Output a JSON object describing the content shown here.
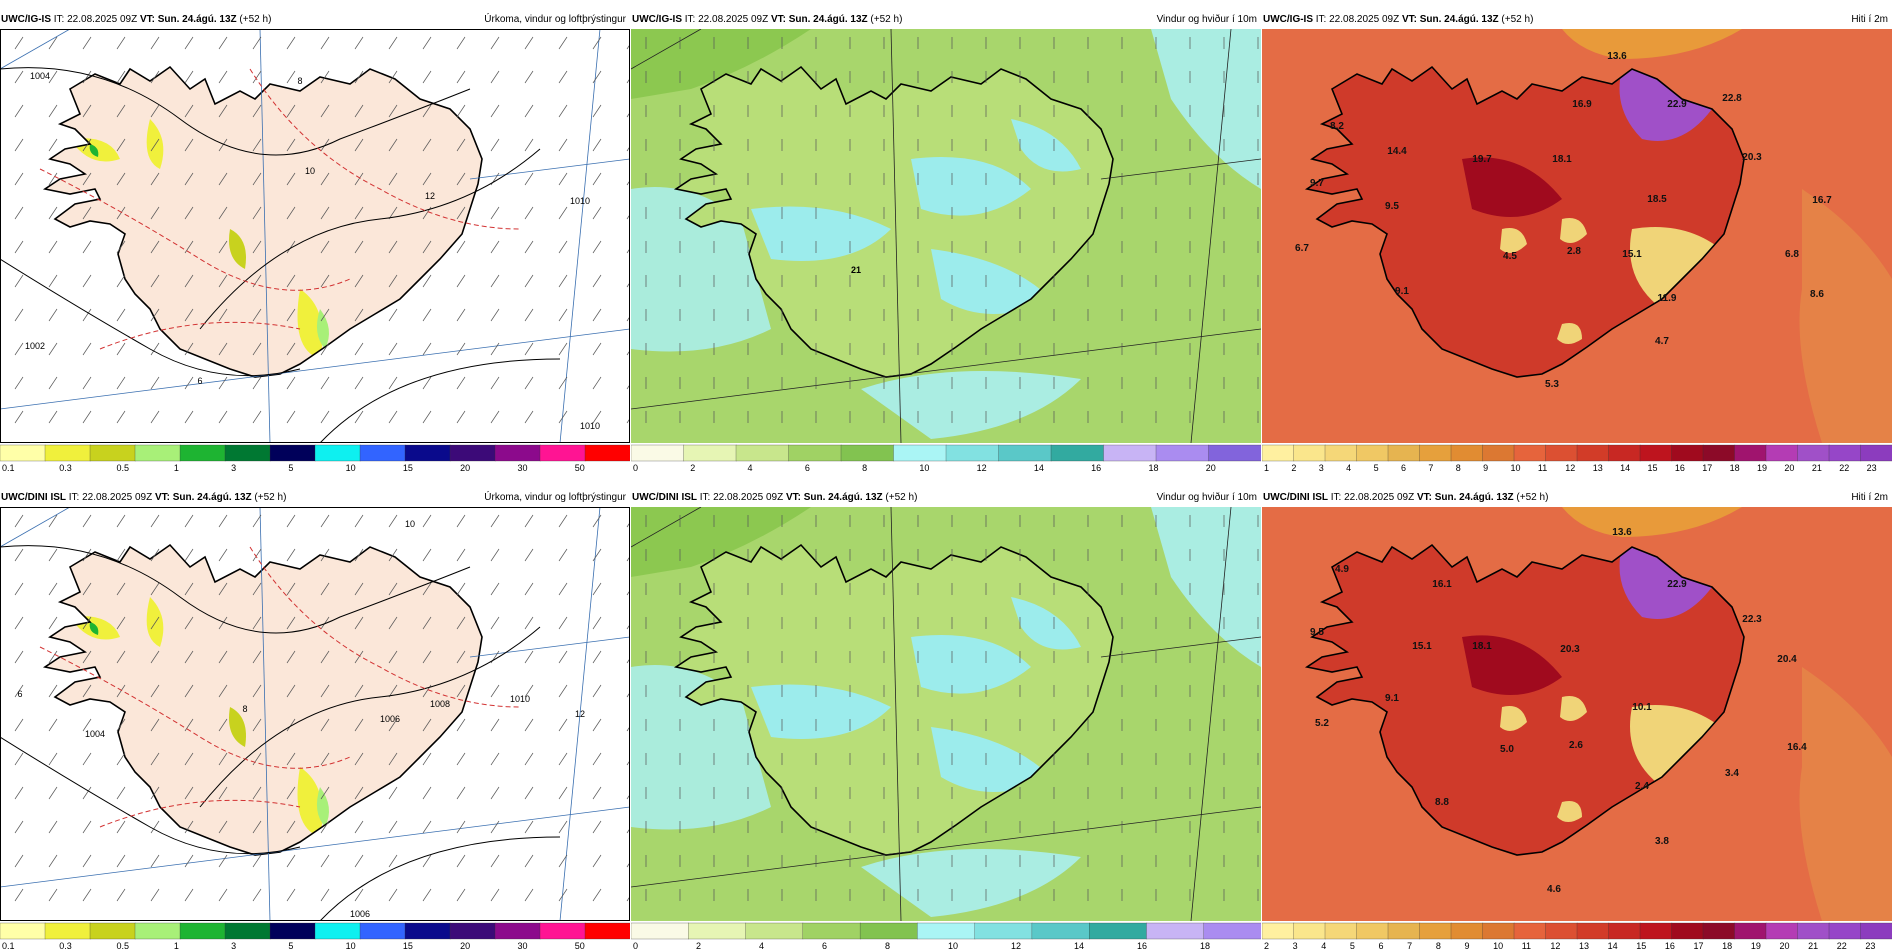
{
  "panels": [
    {
      "id": "p1",
      "model": "UWC/IG-IS",
      "run": " IT: 22.08.2025 09Z ",
      "vt_label": "VT:",
      "vt": "Sun. 24.ágú. 13Z",
      "lead": " (+52 h)",
      "right": "Úrkoma, vindur og loftþrýstingur",
      "kind": "precip",
      "colorbar": {
        "colors": [
          "#ffffa8",
          "#f0f03c",
          "#c8d21e",
          "#a8f078",
          "#1eb432",
          "#007832",
          "#00005a",
          "#0ef0f0",
          "#3264ff",
          "#0a0a8c",
          "#3c0a78",
          "#8c0a8c",
          "#ff1493",
          "#ff0000"
        ],
        "labels": [
          "0.1",
          "0.3",
          "0.5",
          "1",
          "3",
          "5",
          "10",
          "15",
          "20",
          "30",
          "50"
        ]
      },
      "values": [
        {
          "t": "1004"
        },
        {
          "t": "8"
        },
        {
          "t": "10"
        },
        {
          "t": "12"
        },
        {
          "t": "1010"
        },
        {
          "t": "6"
        },
        {
          "t": "1002"
        },
        {
          "t": "1010"
        }
      ]
    },
    {
      "id": "p2",
      "model": "UWC/IG-IS",
      "run": " IT: 22.08.2025 09Z ",
      "vt_label": "VT:",
      "vt": "Sun. 24.ágú. 13Z",
      "lead": " (+52 h)",
      "right": "Vindur og hviður í 10m",
      "kind": "wind",
      "colorbar": {
        "colors": [
          "#fafae6",
          "#e6f5b4",
          "#c8e68c",
          "#a0d264",
          "#82c350",
          "#aaf5f5",
          "#82e1e1",
          "#5ac8c8",
          "#32aaa0",
          "#c8b4f5",
          "#aa8cf0",
          "#8264dc"
        ],
        "labels": [
          "0",
          "2",
          "4",
          "6",
          "8",
          "10",
          "12",
          "14",
          "16",
          "18",
          "20"
        ]
      },
      "values": [
        {
          "t": "21"
        }
      ]
    },
    {
      "id": "p3",
      "model": "UWC/IG-IS",
      "run": " IT: 22.08.2025 09Z ",
      "vt_label": "VT:",
      "vt": "Sun. 24.ágú. 13Z",
      "lead": " (+52 h)",
      "right": "Hiti í 2m",
      "kind": "temp",
      "colorbar": {
        "colors": [
          "#fff0a0",
          "#fae68c",
          "#f5d778",
          "#f0c864",
          "#e6b450",
          "#e6a03c",
          "#e18c32",
          "#dc7832",
          "#e6643c",
          "#dc5032",
          "#d23c28",
          "#c82823",
          "#be141e",
          "#a00a1e",
          "#8c0a28",
          "#a0146e",
          "#b43cb4",
          "#a050c8",
          "#9646c8",
          "#8c3cbe"
        ],
        "labels": [
          "1",
          "2",
          "3",
          "4",
          "5",
          "6",
          "7",
          "8",
          "9",
          "10",
          "11",
          "12",
          "13",
          "14",
          "15",
          "16",
          "17",
          "18",
          "19",
          "20",
          "21",
          "22",
          "23"
        ]
      },
      "values": [
        {
          "t": "13.6"
        },
        {
          "t": "16.9"
        },
        {
          "t": "22.9"
        },
        {
          "t": "22.8"
        },
        {
          "t": "8.2"
        },
        {
          "t": "14.4"
        },
        {
          "t": "19.7"
        },
        {
          "t": "18.1"
        },
        {
          "t": "20.3"
        },
        {
          "t": "9.7"
        },
        {
          "t": "18.5"
        },
        {
          "t": "16.7"
        },
        {
          "t": "9.5"
        },
        {
          "t": "6.7"
        },
        {
          "t": "4.5"
        },
        {
          "t": "2.8"
        },
        {
          "t": "15.1"
        },
        {
          "t": "6.8"
        },
        {
          "t": "9.1"
        },
        {
          "t": "11.9"
        },
        {
          "t": "8.6"
        },
        {
          "t": "4.7"
        },
        {
          "t": "5.3"
        }
      ]
    },
    {
      "id": "p4",
      "model": "UWC/DINI ISL",
      "run": " IT: 22.08.2025 09Z ",
      "vt_label": "VT:",
      "vt": "Sun. 24.ágú. 13Z",
      "lead": " (+52 h)",
      "right": "Úrkoma, vindur og loftþrýstingur",
      "kind": "precip",
      "colorbar": {
        "colors": [
          "#ffffa8",
          "#f0f03c",
          "#c8d21e",
          "#a8f078",
          "#1eb432",
          "#007832",
          "#00005a",
          "#0ef0f0",
          "#3264ff",
          "#0a0a8c",
          "#3c0a78",
          "#8c0a8c",
          "#ff1493",
          "#ff0000"
        ],
        "labels": [
          "0.1",
          "0.3",
          "0.5",
          "1",
          "3",
          "5",
          "10",
          "15",
          "20",
          "30",
          "50"
        ]
      },
      "values": [
        {
          "t": "1004"
        },
        {
          "t": "1006"
        },
        {
          "t": "1008"
        },
        {
          "t": "10"
        },
        {
          "t": "8"
        },
        {
          "t": "6"
        },
        {
          "t": "12"
        },
        {
          "t": "1010"
        },
        {
          "t": "1006"
        }
      ]
    },
    {
      "id": "p5",
      "model": "UWC/DINI ISL",
      "run": " IT: 22.08.2025 09Z ",
      "vt_label": "VT:",
      "vt": "Sun. 24.ágú. 13Z",
      "lead": " (+52 h)",
      "right": "Vindur og hviður í 10m",
      "kind": "wind",
      "colorbar": {
        "colors": [
          "#fafae6",
          "#e6f5b4",
          "#c8e68c",
          "#a0d264",
          "#82c350",
          "#aaf5f5",
          "#82e1e1",
          "#5ac8c8",
          "#32aaa0",
          "#c8b4f5",
          "#aa8cf0"
        ],
        "labels": [
          "0",
          "2",
          "4",
          "6",
          "8",
          "10",
          "12",
          "14",
          "16",
          "18"
        ]
      },
      "values": []
    },
    {
      "id": "p6",
      "model": "UWC/DINI ISL",
      "run": " IT: 22.08.2025 09Z ",
      "vt_label": "VT:",
      "vt": "Sun. 24.ágú. 13Z",
      "lead": " (+52 h)",
      "right": "Hiti í 2m",
      "kind": "temp",
      "colorbar": {
        "colors": [
          "#fff0a0",
          "#fae68c",
          "#f5d778",
          "#f0c864",
          "#e6b450",
          "#e6a03c",
          "#e18c32",
          "#dc7832",
          "#e6643c",
          "#dc5032",
          "#d23c28",
          "#c82823",
          "#be141e",
          "#a00a1e",
          "#8c0a28",
          "#a0146e",
          "#b43cb4",
          "#a050c8",
          "#9646c8",
          "#8c3cbe"
        ],
        "labels": [
          "2",
          "3",
          "4",
          "5",
          "6",
          "7",
          "8",
          "9",
          "10",
          "11",
          "12",
          "13",
          "14",
          "15",
          "16",
          "17",
          "18",
          "19",
          "20",
          "21",
          "22",
          "23"
        ]
      },
      "values": [
        {
          "t": "13.6"
        },
        {
          "t": "4.9"
        },
        {
          "t": "16.1"
        },
        {
          "t": "22.9"
        },
        {
          "t": "22.3"
        },
        {
          "t": "9.5"
        },
        {
          "t": "15.1"
        },
        {
          "t": "18.1"
        },
        {
          "t": "20.3"
        },
        {
          "t": "20.4"
        },
        {
          "t": "9.1"
        },
        {
          "t": "10.1"
        },
        {
          "t": "5.2"
        },
        {
          "t": "5.0"
        },
        {
          "t": "2.6"
        },
        {
          "t": "16.4"
        },
        {
          "t": "2.4"
        },
        {
          "t": "3.4"
        },
        {
          "t": "8.8"
        },
        {
          "t": "3.8"
        },
        {
          "t": "4.6"
        }
      ]
    }
  ]
}
